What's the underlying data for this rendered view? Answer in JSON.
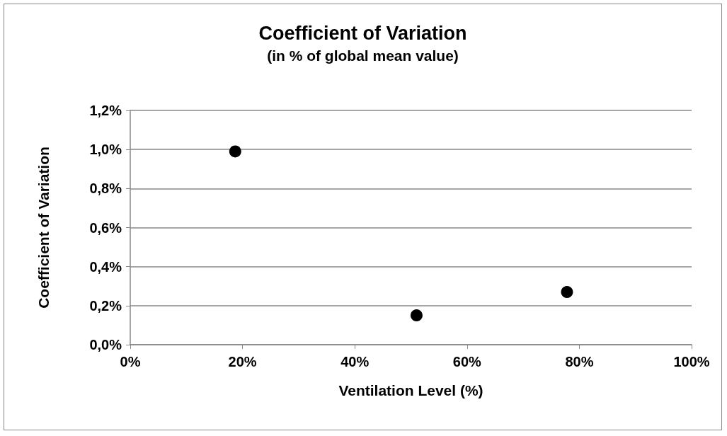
{
  "chart_data": {
    "type": "scatter",
    "title": "Coefficient of Variation",
    "subtitle": "(in % of global mean value)",
    "xlabel": "Ventilation Level (%)",
    "ylabel": "Coefficient of Variation",
    "x": [
      18.7,
      51,
      77.8
    ],
    "series": [
      {
        "color": "#000000",
        "values": [
          0.99,
          0.15,
          0.27
        ]
      }
    ],
    "xlim": [
      0,
      100
    ],
    "xticks": [
      {
        "value": 0,
        "label": "0%"
      },
      {
        "value": 20,
        "label": "20%"
      },
      {
        "value": 40,
        "label": "40%"
      },
      {
        "value": 60,
        "label": "60%"
      },
      {
        "value": 80,
        "label": "80%"
      },
      {
        "value": 100,
        "label": "100%"
      }
    ],
    "ylim": [
      0,
      1.2
    ],
    "yticks": [
      {
        "value": 0,
        "label": "0,0%"
      },
      {
        "value": 0.2,
        "label": "0,2%"
      },
      {
        "value": 0.4,
        "label": "0,4%"
      },
      {
        "value": 0.6,
        "label": "0,6%"
      },
      {
        "value": 0.8,
        "label": "0,8%"
      },
      {
        "value": 1.0,
        "label": "1,0%"
      },
      {
        "value": 1.2,
        "label": "1,2%"
      }
    ],
    "grid": "y",
    "marker": "circle"
  }
}
